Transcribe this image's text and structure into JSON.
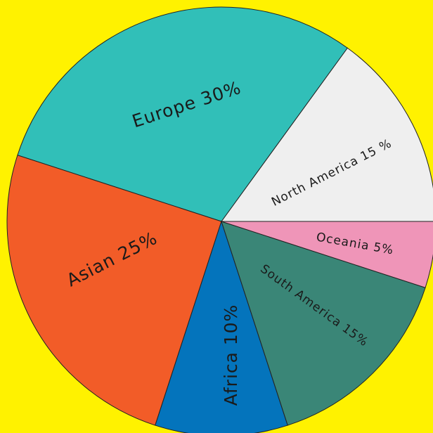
{
  "chart_data": {
    "type": "pie",
    "categories": [
      "North America",
      "Europe",
      "Asian",
      "Africa",
      "South America",
      "Oceania"
    ],
    "values": [
      15,
      30,
      25,
      10,
      15,
      5
    ],
    "value_labels": [
      "15 %",
      "30%",
      "25%",
      "10%",
      "15%",
      "5%"
    ],
    "colors": [
      "#efefef",
      "#31bfb8",
      "#f25c28",
      "#0474bc",
      "#3a8677",
      "#ef95b8"
    ],
    "background": "#fff200"
  }
}
